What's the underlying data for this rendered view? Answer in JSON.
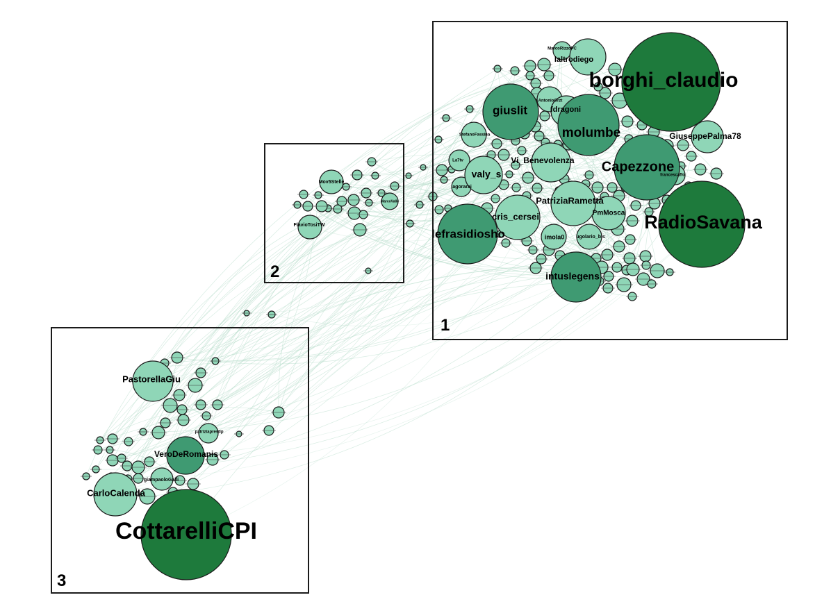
{
  "clusters": [
    {
      "number": "1"
    },
    {
      "number": "2"
    },
    {
      "number": "3"
    }
  ],
  "colors": {
    "dark": "#1e7a3c",
    "mid": "#3f9a72",
    "light": "#8fd6b7",
    "edge": "#b7dccb"
  },
  "nodes": [
    {
      "label": "borghi_claudio",
      "tone": "dark"
    },
    {
      "label": "RadioSavana",
      "tone": "dark"
    },
    {
      "label": "Capezzone",
      "tone": "mid"
    },
    {
      "label": "molumbe",
      "tone": "mid"
    },
    {
      "label": "giuslit",
      "tone": "mid"
    },
    {
      "label": "lefrasidiosho",
      "tone": "mid"
    },
    {
      "label": "intuslegens",
      "tone": "mid"
    },
    {
      "label": "laltrodiego",
      "tone": "light"
    },
    {
      "label": "MarcoRizzoPC",
      "tone": "light"
    },
    {
      "label": "fdragoni",
      "tone": "light"
    },
    {
      "label": "AntonioGrzt",
      "tone": "light"
    },
    {
      "label": "GiuseppePalma78",
      "tone": "light"
    },
    {
      "label": "StefanoFassina",
      "tone": "light"
    },
    {
      "label": "La7tv",
      "tone": "light"
    },
    {
      "label": "agorarai",
      "tone": "light"
    },
    {
      "label": "valy_s",
      "tone": "light"
    },
    {
      "label": "Vi_Benevolenza",
      "tone": "light"
    },
    {
      "label": "PatriziaRametta",
      "tone": "light"
    },
    {
      "label": "cris_cersei",
      "tone": "light"
    },
    {
      "label": "PmMosca",
      "tone": "light"
    },
    {
      "label": "imola0",
      "tone": "light"
    },
    {
      "label": "ugolario_bis",
      "tone": "light"
    },
    {
      "label": "francescaffo",
      "tone": "light"
    },
    {
      "label": "Mov5Stelle",
      "tone": "light"
    },
    {
      "label": "FlavioTosiTW",
      "tone": "light"
    },
    {
      "label": "MarcoValle",
      "tone": "light"
    },
    {
      "label": "PastorellaGiu",
      "tone": "light"
    },
    {
      "label": "patriziaprestip",
      "tone": "light"
    },
    {
      "label": "VeroDeRomanis",
      "tone": "mid"
    },
    {
      "label": "giampaoloGalli",
      "tone": "light"
    },
    {
      "label": "CarloCalenda",
      "tone": "light"
    },
    {
      "label": "CottarelliCPI",
      "tone": "dark"
    }
  ]
}
